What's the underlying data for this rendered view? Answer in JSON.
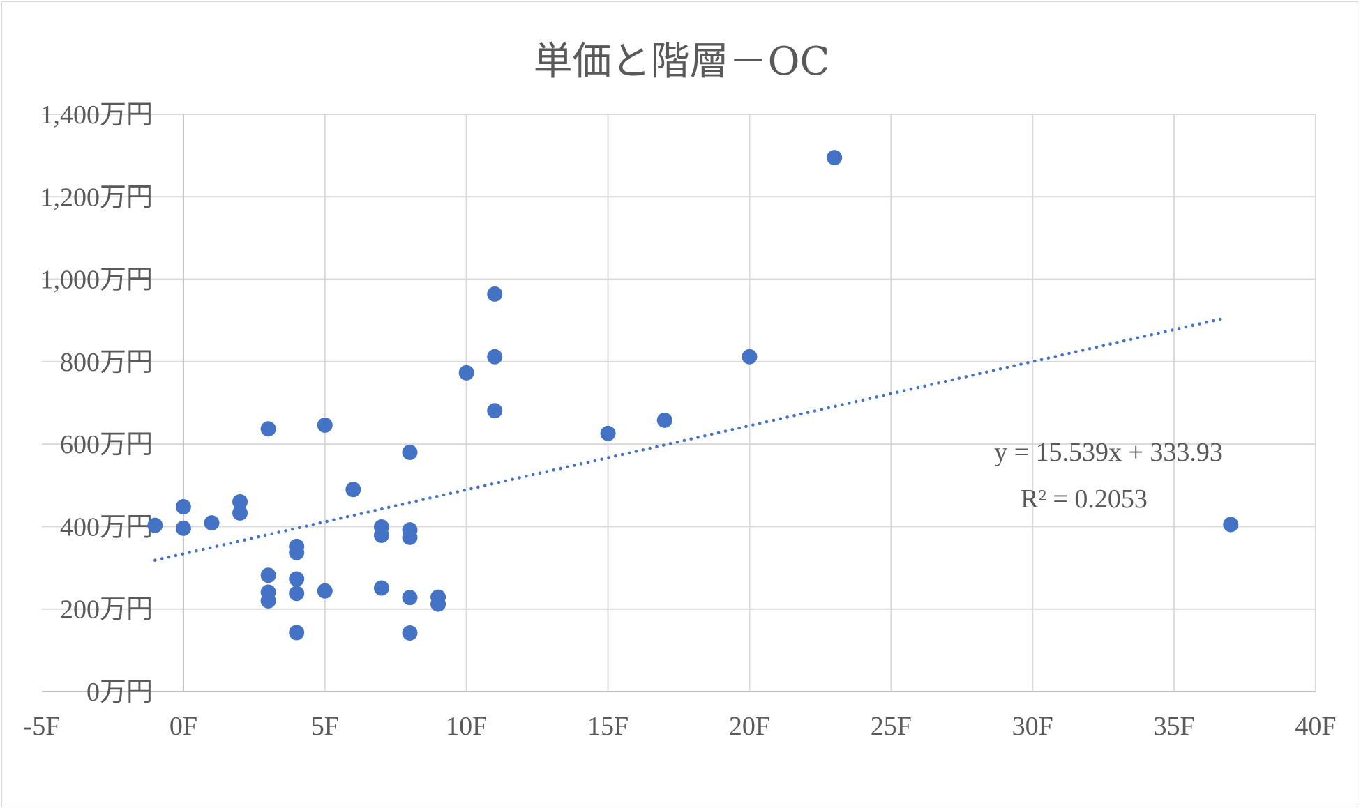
{
  "chart_data": {
    "type": "scatter",
    "title": "単価と階層－OC",
    "xlim": [
      -5,
      40
    ],
    "ylim": [
      0,
      1400
    ],
    "x_ticks": [
      -5,
      0,
      5,
      10,
      15,
      20,
      25,
      30,
      35,
      40
    ],
    "x_tick_labels": [
      "-5F",
      "0F",
      "5F",
      "10F",
      "15F",
      "20F",
      "25F",
      "30F",
      "35F",
      "40F"
    ],
    "y_ticks": [
      0,
      200,
      400,
      600,
      800,
      1000,
      1200,
      1400
    ],
    "y_tick_labels": [
      "0万円",
      "200万円",
      "400万円",
      "600万円",
      "800万円",
      "1,000万円",
      "1,200万円",
      "1,400万円"
    ],
    "grid": true,
    "marker_color": "#4472c4",
    "trendline_color": "#4472c4",
    "points": [
      {
        "x": -1,
        "y": 403
      },
      {
        "x": 0,
        "y": 448
      },
      {
        "x": 0,
        "y": 396
      },
      {
        "x": 1,
        "y": 409
      },
      {
        "x": 2,
        "y": 460
      },
      {
        "x": 2,
        "y": 433
      },
      {
        "x": 3,
        "y": 637
      },
      {
        "x": 3,
        "y": 282
      },
      {
        "x": 3,
        "y": 241
      },
      {
        "x": 3,
        "y": 220
      },
      {
        "x": 4,
        "y": 352
      },
      {
        "x": 4,
        "y": 337
      },
      {
        "x": 4,
        "y": 273
      },
      {
        "x": 4,
        "y": 238
      },
      {
        "x": 4,
        "y": 143
      },
      {
        "x": 5,
        "y": 646
      },
      {
        "x": 5,
        "y": 244
      },
      {
        "x": 6,
        "y": 490
      },
      {
        "x": 7,
        "y": 399
      },
      {
        "x": 7,
        "y": 379
      },
      {
        "x": 7,
        "y": 251
      },
      {
        "x": 8,
        "y": 580
      },
      {
        "x": 8,
        "y": 392
      },
      {
        "x": 8,
        "y": 374
      },
      {
        "x": 8,
        "y": 228
      },
      {
        "x": 8,
        "y": 142
      },
      {
        "x": 9,
        "y": 229
      },
      {
        "x": 9,
        "y": 212
      },
      {
        "x": 10,
        "y": 773
      },
      {
        "x": 11,
        "y": 964
      },
      {
        "x": 11,
        "y": 812
      },
      {
        "x": 11,
        "y": 681
      },
      {
        "x": 15,
        "y": 626
      },
      {
        "x": 17,
        "y": 658
      },
      {
        "x": 20,
        "y": 812
      },
      {
        "x": 23,
        "y": 1295
      },
      {
        "x": 37,
        "y": 405
      }
    ],
    "trendline": {
      "type": "linear",
      "slope": 15.539,
      "intercept": 333.93,
      "x_start": -1,
      "x_end": 36.8,
      "equation": "y = 15.539x + 333.93",
      "r_squared": "R² = 0.2053"
    }
  }
}
